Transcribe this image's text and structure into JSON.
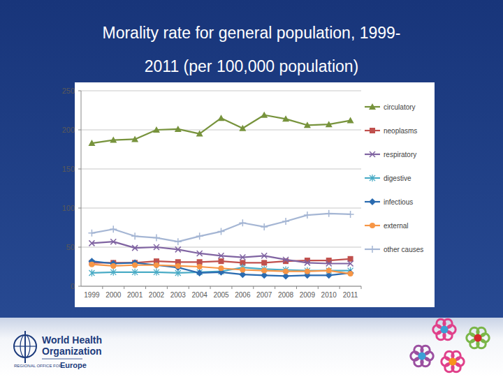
{
  "chart_data": {
    "type": "line",
    "title": "Morality rate for general population, 1999-2011 (per 100,000 population)",
    "categories": [
      "1999",
      "2000",
      "2001",
      "2002",
      "2003",
      "2004",
      "2005",
      "2006",
      "2007",
      "2008",
      "2009",
      "2010",
      "2011"
    ],
    "series": [
      {
        "name": "circulatory",
        "color": "#77933c",
        "marker": "triangle",
        "values": [
          183,
          187,
          188,
          200,
          201,
          195,
          215,
          202,
          219,
          214,
          206,
          207,
          212
        ]
      },
      {
        "name": "neoplasms",
        "color": "#c0504d",
        "marker": "square",
        "values": [
          30,
          30,
          30,
          32,
          31,
          31,
          32,
          30,
          30,
          32,
          33,
          33,
          35
        ]
      },
      {
        "name": "respiratory",
        "color": "#8064a2",
        "marker": "x",
        "values": [
          55,
          57,
          49,
          50,
          47,
          42,
          39,
          37,
          39,
          34,
          30,
          29,
          29
        ]
      },
      {
        "name": "digestive",
        "color": "#4bacc6",
        "marker": "star",
        "values": [
          17,
          18,
          18,
          18,
          17,
          18,
          19,
          24,
          22,
          21,
          20,
          20,
          20
        ]
      },
      {
        "name": "infectious",
        "color": "#2a6bb0",
        "marker": "diamond",
        "values": [
          32,
          29,
          30,
          27,
          24,
          17,
          18,
          15,
          14,
          13,
          14,
          14,
          17
        ]
      },
      {
        "name": "external",
        "color": "#f79646",
        "marker": "circle",
        "values": [
          28,
          26,
          27,
          27,
          26,
          25,
          23,
          21,
          20,
          19,
          19,
          20,
          16
        ]
      },
      {
        "name": "other causes",
        "color": "#a5b6d4",
        "marker": "plus",
        "values": [
          68,
          73,
          64,
          62,
          57,
          64,
          70,
          81,
          76,
          83,
          91,
          93,
          92
        ]
      }
    ],
    "ylim": [
      0,
      250
    ],
    "yticks": [
      0,
      50,
      100,
      150,
      200,
      250
    ],
    "grid": true,
    "legend": "right"
  },
  "footer": {
    "organization": "World Health Organization",
    "office_prefix": "REGIONAL OFFICE FOR",
    "office": "Europe"
  }
}
